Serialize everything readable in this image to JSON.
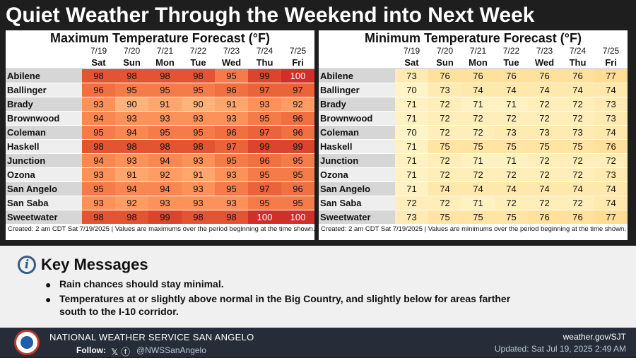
{
  "title": "Quiet Weather Through the Weekend into Next Week",
  "max_table": {
    "title": "Maximum Temperature Forecast (°F)",
    "dates": [
      "7/19",
      "7/20",
      "7/21",
      "7/22",
      "7/23",
      "7/24",
      "7/25"
    ],
    "days": [
      "Sat",
      "Sun",
      "Mon",
      "Tue",
      "Wed",
      "Thu",
      "Fri"
    ],
    "rows": [
      {
        "city": "Abilene",
        "values": [
          "98",
          "98",
          "98",
          "98",
          "95",
          "99",
          "100"
        ]
      },
      {
        "city": "Ballinger",
        "values": [
          "96",
          "95",
          "95",
          "95",
          "96",
          "97",
          "97"
        ]
      },
      {
        "city": "Brady",
        "values": [
          "93",
          "90",
          "91",
          "90",
          "91",
          "93",
          "92"
        ]
      },
      {
        "city": "Brownwood",
        "values": [
          "94",
          "93",
          "93",
          "93",
          "93",
          "95",
          "96"
        ]
      },
      {
        "city": "Coleman",
        "values": [
          "95",
          "94",
          "95",
          "95",
          "96",
          "97",
          "96"
        ]
      },
      {
        "city": "Haskell",
        "values": [
          "98",
          "98",
          "98",
          "98",
          "97",
          "99",
          "99"
        ]
      },
      {
        "city": "Junction",
        "values": [
          "94",
          "93",
          "94",
          "93",
          "95",
          "96",
          "95"
        ]
      },
      {
        "city": "Ozona",
        "values": [
          "93",
          "91",
          "92",
          "91",
          "93",
          "95",
          "95"
        ]
      },
      {
        "city": "San Angelo",
        "values": [
          "95",
          "94",
          "94",
          "93",
          "95",
          "97",
          "96"
        ]
      },
      {
        "city": "San Saba",
        "values": [
          "93",
          "92",
          "93",
          "93",
          "93",
          "95",
          "95"
        ]
      },
      {
        "city": "Sweetwater",
        "values": [
          "98",
          "98",
          "99",
          "98",
          "98",
          "100",
          "100"
        ]
      }
    ],
    "footnote": "Created: 2 am CDT Sat 7/19/2025  |  Values are maximums over the period beginning at the time shown."
  },
  "min_table": {
    "title": "Minimum Temperature Forecast (°F)",
    "dates": [
      "7/19",
      "7/20",
      "7/21",
      "7/22",
      "7/23",
      "7/24",
      "7/25"
    ],
    "days": [
      "Sat",
      "Sun",
      "Mon",
      "Tue",
      "Wed",
      "Thu",
      "Fri"
    ],
    "rows": [
      {
        "city": "Abilene",
        "values": [
          "73",
          "76",
          "76",
          "76",
          "76",
          "76",
          "77"
        ]
      },
      {
        "city": "Ballinger",
        "values": [
          "70",
          "73",
          "74",
          "74",
          "74",
          "74",
          "74"
        ]
      },
      {
        "city": "Brady",
        "values": [
          "71",
          "72",
          "71",
          "71",
          "72",
          "72",
          "73"
        ]
      },
      {
        "city": "Brownwood",
        "values": [
          "71",
          "72",
          "72",
          "72",
          "72",
          "72",
          "73"
        ]
      },
      {
        "city": "Coleman",
        "values": [
          "70",
          "72",
          "72",
          "73",
          "73",
          "73",
          "74"
        ]
      },
      {
        "city": "Haskell",
        "values": [
          "71",
          "75",
          "75",
          "75",
          "75",
          "75",
          "76"
        ]
      },
      {
        "city": "Junction",
        "values": [
          "71",
          "72",
          "71",
          "71",
          "72",
          "72",
          "72"
        ]
      },
      {
        "city": "Ozona",
        "values": [
          "71",
          "72",
          "72",
          "72",
          "72",
          "72",
          "73"
        ]
      },
      {
        "city": "San Angelo",
        "values": [
          "71",
          "74",
          "74",
          "74",
          "74",
          "74",
          "74"
        ]
      },
      {
        "city": "San Saba",
        "values": [
          "72",
          "72",
          "71",
          "72",
          "72",
          "72",
          "74"
        ]
      },
      {
        "city": "Sweetwater",
        "values": [
          "73",
          "75",
          "75",
          "75",
          "76",
          "76",
          "77"
        ]
      }
    ],
    "footnote": "Created: 2 am CDT Sat 7/19/2025  |  Values are minimums over the period beginning at the time shown."
  },
  "key_messages": {
    "icon": "info-icon",
    "title": "Key Messages",
    "items": [
      "Rain chances should stay minimal.",
      "Temperatures at or slightly above normal in the Big Country, and slightly below for areas farther south to the I-10 corridor."
    ],
    "item2_line1": "Temperatures at or slightly above normal in the Big Country, and slightly below for areas farther",
    "item2_line2": "south to the I-10 corridor."
  },
  "footer": {
    "org": "NATIONAL WEATHER SERVICE SAN ANGELO",
    "follow_label": "Follow:",
    "social_icons": [
      "x-icon",
      "facebook-icon"
    ],
    "social_glyphs": "𝕏 ⓕ",
    "handle": "@NWSSanAngelo",
    "website": "weather.gov/SJT",
    "updated": "Updated: Sat Jul 19, 2025 2:49 AM"
  },
  "colors": {
    "max_scale": {
      "90": "#ffb27a",
      "91": "#ffa66e",
      "92": "#ff9c64",
      "93": "#fd915a",
      "94": "#f98752",
      "95": "#f57c4a",
      "96": "#f07042",
      "97": "#ea633a",
      "98": "#e35433",
      "99": "#db452d",
      "100": "#d02f2a"
    },
    "min_scale": {
      "70": "#fff4c8",
      "71": "#fff1c1",
      "72": "#ffeeba",
      "73": "#ffebb2",
      "74": "#ffe8ab",
      "75": "#ffe4a3",
      "76": "#ffe19b",
      "77": "#ffdd92"
    },
    "title_bg": "#1e1e1e",
    "footer_bg": "#262d38"
  }
}
